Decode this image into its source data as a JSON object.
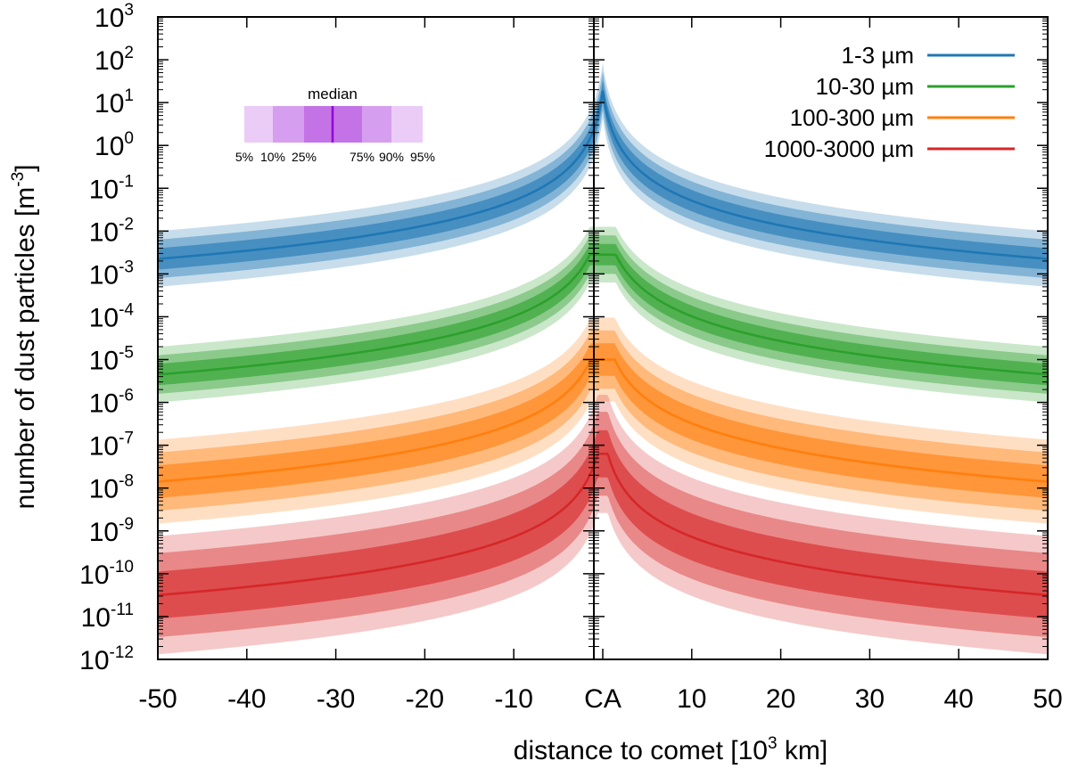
{
  "chart_data": {
    "type": "line",
    "x_axis": {
      "label": "distance to comet [10",
      "label_sup": "3",
      "label_tail": " km]",
      "range": [
        -50,
        50
      ],
      "ticks": [
        {
          "value": -50,
          "label": "-50"
        },
        {
          "value": -40,
          "label": "-40"
        },
        {
          "value": -30,
          "label": "-30"
        },
        {
          "value": -20,
          "label": "-20"
        },
        {
          "value": -10,
          "label": "-10"
        },
        {
          "value": 0,
          "label": "CA"
        },
        {
          "value": 10,
          "label": "10"
        },
        {
          "value": 20,
          "label": "20"
        },
        {
          "value": 30,
          "label": "30"
        },
        {
          "value": 40,
          "label": "40"
        },
        {
          "value": 50,
          "label": "50"
        }
      ]
    },
    "y_axis": {
      "label": "number of dust particles [m",
      "label_sup": "-3",
      "label_tail": "]",
      "scale": "log",
      "range_exponent": [
        -12,
        3
      ],
      "tick_base": "10",
      "tick_exponents": [
        "3",
        "2",
        "1",
        "0",
        "-1",
        "-2",
        "-3",
        "-4",
        "-5",
        "-6",
        "-7",
        "-8",
        "-9",
        "-10",
        "-11",
        "-12"
      ]
    },
    "series": [
      {
        "name": "1-3 µm",
        "color": "#1f77b4",
        "log10_at_50": -2.65,
        "log10_at_ca": 1.3,
        "band_log_widths": [
          0.25,
          0.45,
          0.65
        ]
      },
      {
        "name": "10-30 µm",
        "color": "#2ca02c",
        "log10_at_50": -5.35,
        "log10_at_ca": -2.55,
        "band_log_widths": [
          0.25,
          0.45,
          0.65
        ]
      },
      {
        "name": "100-300 µm",
        "color": "#ff7f0e",
        "log10_at_50": -7.85,
        "log10_at_ca": -5.0,
        "band_log_widths": [
          0.38,
          0.68,
          0.98
        ]
      },
      {
        "name": "1000-3000 µm",
        "color": "#d62728",
        "log10_at_50": -10.5,
        "log10_at_ca": -7.2,
        "band_log_widths": [
          0.55,
          0.98,
          1.38
        ]
      }
    ],
    "percentile_inset": {
      "title": "median",
      "labels": [
        "5%",
        "10%",
        "25%",
        "75%",
        "90%",
        "95%"
      ],
      "color": "#9400d3"
    }
  }
}
